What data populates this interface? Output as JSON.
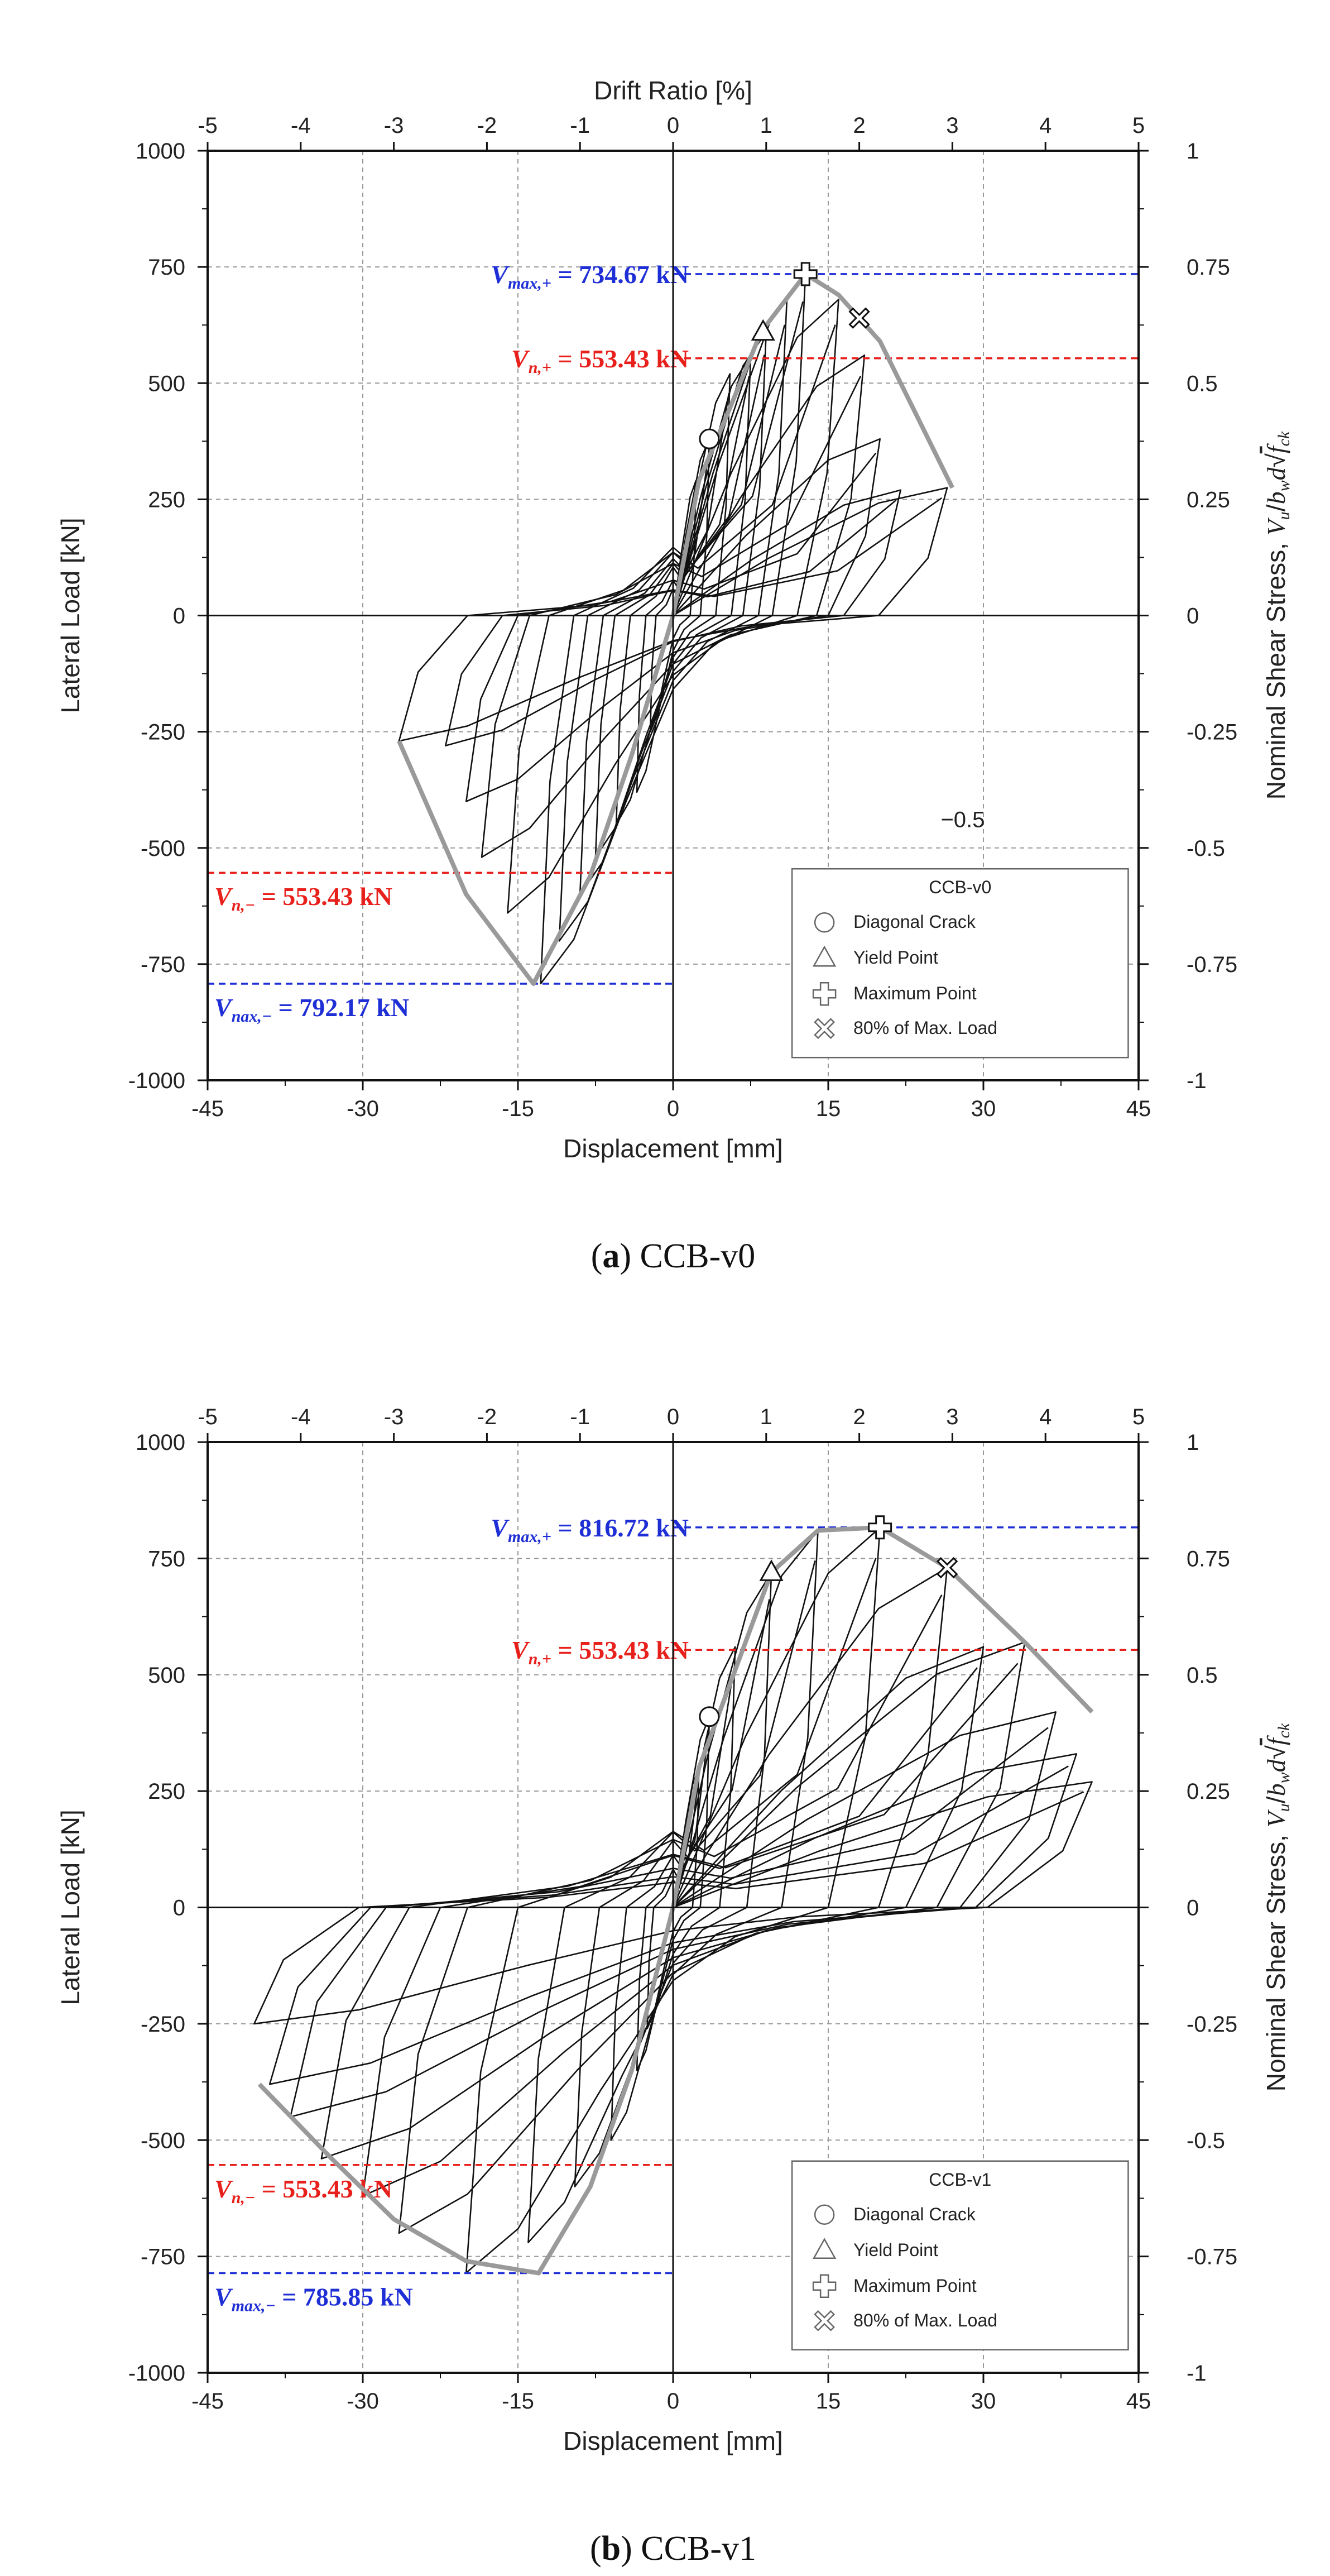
{
  "colors": {
    "max_ref": "#1f2fd6",
    "nom_ref": "#e8201c",
    "envelope": "#9a9a9a",
    "hysteresis": "#111111",
    "grid": "#9a9a9a"
  },
  "shared": {
    "top_axis_label": "Drift Ratio [%]",
    "x_label": "Displacement [mm]",
    "y_label": "Lateral Load [kN]",
    "y2_label": "Nominal Shear Stress, V_u/b_w d√f_ck",
    "x_ticks": [
      "-45",
      "-30",
      "-15",
      "0",
      "15",
      "30",
      "45"
    ],
    "x_tick_values": [
      -45,
      -30,
      -15,
      0,
      15,
      30,
      45
    ],
    "top_ticks": [
      "-5",
      "-4",
      "-3",
      "-2",
      "-1",
      "0",
      "1",
      "2",
      "3",
      "4",
      "5"
    ],
    "top_tick_values": [
      -5,
      -4,
      -3,
      -2,
      -1,
      0,
      1,
      2,
      3,
      4,
      5
    ],
    "y_ticks": [
      "1000",
      "750",
      "500",
      "250",
      "0",
      "-250",
      "-500",
      "-750",
      "-1000"
    ],
    "y_tick_values": [
      1000,
      750,
      500,
      250,
      0,
      -250,
      -500,
      -750,
      -1000
    ],
    "y2_ticks": [
      "1",
      "0.75",
      "0.5",
      "0.25",
      "0",
      "-0.25",
      "-0.5",
      "-0.75",
      "-1"
    ],
    "legend_items": [
      "Diagonal Crack",
      "Yield Point",
      "Maximum Point",
      "80% of Max. Load"
    ]
  },
  "chart_data": [
    {
      "type": "line",
      "panel_id": "a",
      "caption_letter": "a",
      "caption_text": " CCB-v0",
      "legend_title": "CCB-v0",
      "xlim": [
        -45,
        45
      ],
      "ylim": [
        -1000,
        1000
      ],
      "top_xlim": [
        -5,
        5
      ],
      "y2lim": [
        -1,
        1
      ],
      "grid": true,
      "legend_position": "bottom-right",
      "stray_label": "−0.5",
      "ref_lines": [
        {
          "kind": "max",
          "y": 734.67,
          "x_from": 0,
          "x_to": 45,
          "label": "V_max,+ = 734.67 kN"
        },
        {
          "kind": "nom",
          "y": 553.43,
          "x_from": 0,
          "x_to": 45,
          "label": "V_n,+ = 553.43 kN"
        },
        {
          "kind": "nom",
          "y": -553.43,
          "x_from": -45,
          "x_to": 0,
          "label": "V_n,− = 553.43 kN"
        },
        {
          "kind": "max",
          "y": -792.17,
          "x_from": -45,
          "x_to": 0,
          "label": "V_nax,− = 792.17 kN"
        }
      ],
      "markers": {
        "diagonal_crack": [
          3.5,
          380
        ],
        "yield_point": [
          8.7,
          610
        ],
        "maximum_point": [
          12.8,
          734.67
        ],
        "eighty_percent": [
          18,
          640
        ]
      },
      "envelope": {
        "x": [
          -26.5,
          -20,
          -13.5,
          -8,
          -4,
          0,
          2.5,
          5,
          8.5,
          12.8,
          16,
          20,
          27
        ],
        "y": [
          -270,
          -600,
          -792.17,
          -560,
          -300,
          0,
          290,
          420,
          610,
          734.67,
          690,
          590,
          275
        ]
      },
      "cycles": [
        {
          "amp": 2.2,
          "pos": 290,
          "neg": -250
        },
        {
          "amp": 3.5,
          "pos": 380,
          "neg": -380
        },
        {
          "amp": 5.5,
          "pos": 520,
          "neg": -450
        },
        {
          "amp": 7.5,
          "pos": 560,
          "neg": -520
        },
        {
          "amp": 9,
          "pos": 610,
          "neg": -600
        },
        {
          "amp": 11,
          "pos": 680,
          "neg": -700
        },
        {
          "amp": 12.8,
          "pos": 734,
          "neg": -792
        },
        {
          "amp": 16,
          "pos": 680,
          "neg": -640
        },
        {
          "amp": 18.5,
          "pos": 560,
          "neg": -520
        },
        {
          "amp": 20,
          "pos": 380,
          "neg": -400
        },
        {
          "amp": 22,
          "pos": 270,
          "neg": -280
        },
        {
          "amp": 26.5,
          "pos": 275,
          "neg": -270
        }
      ]
    },
    {
      "type": "line",
      "panel_id": "b",
      "caption_letter": "b",
      "caption_text": " CCB-v1",
      "legend_title": "CCB-v1",
      "xlim": [
        -45,
        45
      ],
      "ylim": [
        -1000,
        1000
      ],
      "top_xlim": [
        -5,
        5
      ],
      "y2lim": [
        -1,
        1
      ],
      "grid": true,
      "legend_position": "bottom-right",
      "stray_label": "",
      "ref_lines": [
        {
          "kind": "max",
          "y": 816.72,
          "x_from": 0,
          "x_to": 45,
          "label": "V_max,+ = 816.72 kN"
        },
        {
          "kind": "nom",
          "y": 553.43,
          "x_from": 0,
          "x_to": 45,
          "label": "V_n,+ = 553.43 kN"
        },
        {
          "kind": "nom",
          "y": -553.43,
          "x_from": -45,
          "x_to": 0,
          "label": "V_n,− = 553.43 kN"
        },
        {
          "kind": "max",
          "y": -785.85,
          "x_from": -45,
          "x_to": 0,
          "label": "V_max,− = 785.85 kN"
        }
      ],
      "markers": {
        "diagonal_crack": [
          3.5,
          410
        ],
        "yield_point": [
          9.5,
          720
        ],
        "maximum_point": [
          20,
          816.72
        ],
        "eighty_percent": [
          26.5,
          730
        ]
      },
      "envelope": {
        "x": [
          -40,
          -33,
          -27,
          -20,
          -13,
          -8,
          -4,
          0,
          2.5,
          5,
          9.5,
          14,
          20,
          26.5,
          34,
          40.5
        ],
        "y": [
          -380,
          -540,
          -670,
          -760,
          -785.85,
          -600,
          -350,
          0,
          300,
          450,
          720,
          810,
          816.72,
          730,
          570,
          420
        ]
      },
      "cycles": [
        {
          "amp": 2.5,
          "pos": 300,
          "neg": -260
        },
        {
          "amp": 3.5,
          "pos": 410,
          "neg": -350
        },
        {
          "amp": 6,
          "pos": 560,
          "neg": -500
        },
        {
          "amp": 9.5,
          "pos": 720,
          "neg": -600
        },
        {
          "amp": 14,
          "pos": 810,
          "neg": -720
        },
        {
          "amp": 20,
          "pos": 816,
          "neg": -785
        },
        {
          "amp": 26.5,
          "pos": 730,
          "neg": -700
        },
        {
          "amp": 30,
          "pos": 560,
          "neg": -620
        },
        {
          "amp": 34,
          "pos": 570,
          "neg": -540
        },
        {
          "amp": 37,
          "pos": 420,
          "neg": -450
        },
        {
          "amp": 39,
          "pos": 330,
          "neg": -380
        },
        {
          "amp": 40.5,
          "pos": 270,
          "neg": -250
        }
      ]
    }
  ]
}
